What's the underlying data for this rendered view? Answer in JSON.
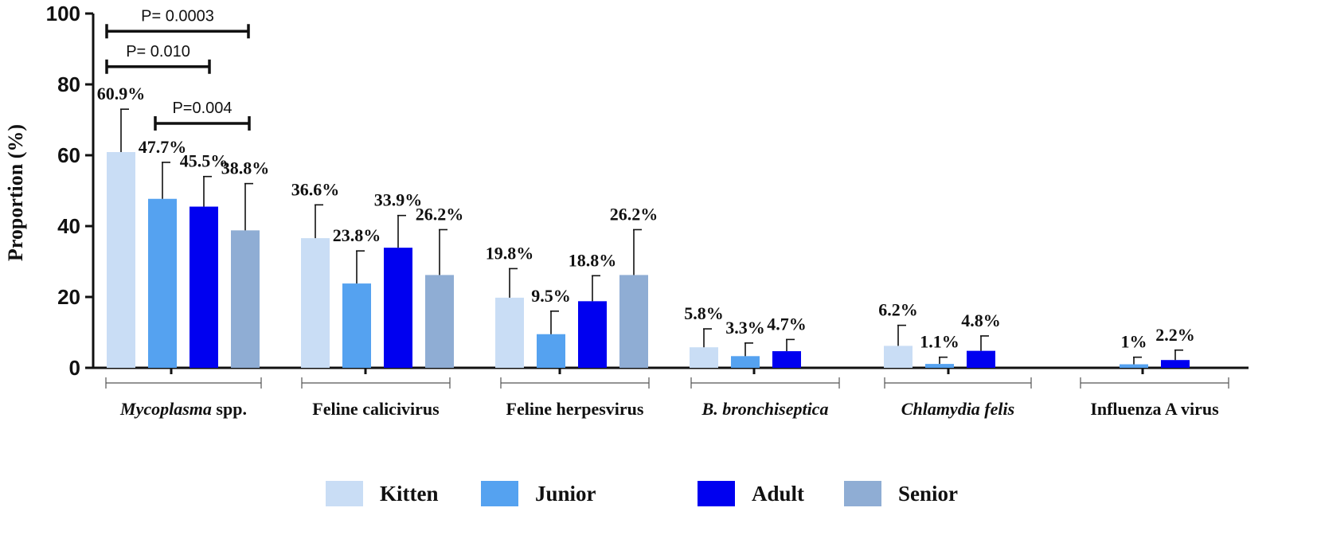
{
  "chart_data": {
    "type": "bar",
    "ylabel": "Proportion (%)",
    "ylim": [
      0,
      100
    ],
    "yticks": [
      "0",
      "20",
      "40",
      "60",
      "80",
      "100"
    ],
    "categories": [
      {
        "name": "Mycoplasma",
        "suffix": " spp.",
        "italic": true
      },
      {
        "name": "Feline calicivirus",
        "suffix": "",
        "italic": false
      },
      {
        "name": "Feline herpesvirus",
        "suffix": "",
        "italic": false
      },
      {
        "name": "B. bronchiseptica",
        "suffix": "",
        "italic": true
      },
      {
        "name": "Chlamydia felis",
        "suffix": "",
        "italic": true
      },
      {
        "name": "Influenza A virus",
        "suffix": "",
        "italic": false
      }
    ],
    "series": [
      {
        "name": "Kitten",
        "color": "#c9ddf5",
        "values": [
          60.9,
          36.6,
          19.8,
          5.8,
          6.2,
          null
        ],
        "errors": [
          73,
          46,
          28,
          11,
          12,
          null
        ],
        "labels": [
          "60.9%",
          "36.6%",
          "19.8%",
          "5.8%",
          "6.2%",
          ""
        ]
      },
      {
        "name": "Junior",
        "color": "#55a2f0",
        "values": [
          47.7,
          23.8,
          9.5,
          3.3,
          1.1,
          1
        ],
        "errors": [
          58,
          33,
          16,
          7,
          3,
          3
        ],
        "labels": [
          "47.7%",
          "23.8%",
          "9.5%",
          "3.3%",
          "1.1%",
          "1%"
        ]
      },
      {
        "name": "Adult",
        "color": "#0000f0",
        "values": [
          45.5,
          33.9,
          18.8,
          4.7,
          4.8,
          2.2
        ],
        "errors": [
          54,
          43,
          26,
          8,
          9,
          5
        ],
        "labels": [
          "45.5%",
          "33.9%",
          "18.8%",
          "4.7%",
          "4.8%",
          "2.2%"
        ]
      },
      {
        "name": "Senior",
        "color": "#8fadd4",
        "values": [
          38.8,
          26.2,
          26.2,
          null,
          null,
          null
        ],
        "errors": [
          52,
          39,
          39,
          null,
          null,
          null
        ],
        "labels": [
          "38.8%",
          "26.2%",
          "26.2%",
          "",
          "",
          ""
        ]
      }
    ],
    "significance": [
      {
        "label": "P= 0.0003",
        "from_series": 0,
        "to_series": 3,
        "category": 0,
        "y": 95
      },
      {
        "label": "P= 0.010",
        "from_series": 0,
        "to_series": 2,
        "category": 0,
        "y": 85
      },
      {
        "label": "P=0.004",
        "from_series": 1,
        "to_series": 3,
        "category": 0,
        "y": 69
      }
    ],
    "legend": {
      "position": "bottom",
      "items": [
        "Kitten",
        "Junior",
        "Adult",
        "Senior"
      ]
    }
  }
}
